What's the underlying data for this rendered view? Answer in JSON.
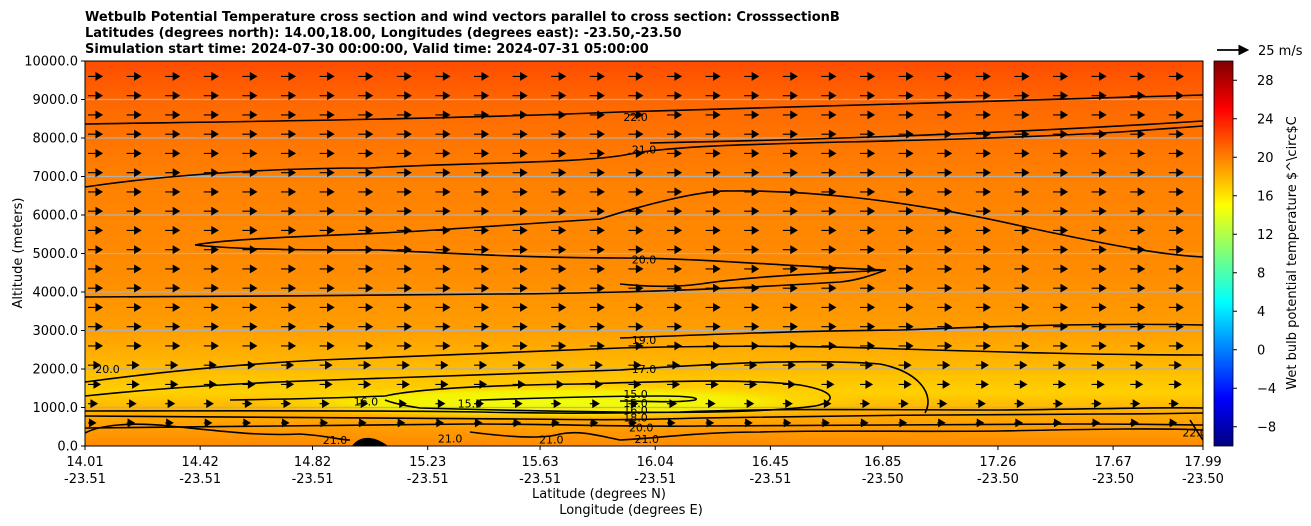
{
  "chart_data": {
    "type": "heatmap",
    "title_lines": [
      "Wetbulb Potential Temperature cross section and wind vectors parallel to cross section: CrosssectionB",
      "Latitudes (degrees north): 14.00,18.00, Longitudes (degrees east): -23.50,-23.50",
      "Simulation start time: 2024-07-30 00:00:00, Valid time: 2024-07-31 05:00:00"
    ],
    "ylabel": "Altitude (meters)",
    "xlabel_lat": "Latitude (degrees N)",
    "xlabel_lon": "Longitude (degrees E)",
    "ylim": [
      0,
      10000
    ],
    "y_ticks": [
      0,
      1000,
      2000,
      3000,
      4000,
      5000,
      6000,
      7000,
      8000,
      9000,
      10000
    ],
    "y_tick_labels": [
      "0.0",
      "1000.0",
      "2000.0",
      "3000.0",
      "4000.0",
      "5000.0",
      "6000.0",
      "7000.0",
      "8000.0",
      "9000.0",
      "10000.0"
    ],
    "xlim": [
      14.01,
      17.99
    ],
    "x_ticks": [
      14.01,
      14.42,
      14.82,
      15.23,
      15.63,
      16.04,
      16.45,
      16.85,
      17.26,
      17.67,
      17.99
    ],
    "x_tick_lat": [
      "14.01",
      "14.42",
      "14.82",
      "15.23",
      "15.63",
      "16.04",
      "16.45",
      "16.85",
      "17.26",
      "17.67",
      "17.99"
    ],
    "x_tick_lon": [
      "-23.51",
      "-23.51",
      "-23.51",
      "-23.51",
      "-23.51",
      "-23.51",
      "-23.51",
      "-23.50",
      "-23.50",
      "-23.50",
      "-23.50"
    ],
    "grid": "horizontal",
    "colorbar": {
      "label": "Wet bulb potential temperature $^\\circ$C",
      "range": [
        -10,
        30
      ],
      "ticks": [
        -8,
        -4,
        0,
        4,
        8,
        12,
        16,
        20,
        24,
        28
      ],
      "tick_labels": [
        "−8",
        "−4",
        "0",
        "4",
        "8",
        "12",
        "16",
        "20",
        "24",
        "28"
      ],
      "colormap": "jet"
    },
    "wind_key": {
      "label": "25 m/s",
      "speed": 25
    },
    "contour_labels": [
      {
        "text": "22.0",
        "lat": 15.97,
        "alt": 8550
      },
      {
        "text": "21.0",
        "lat": 16.0,
        "alt": 7700
      },
      {
        "text": "20.0",
        "lat": 16.0,
        "alt": 4850
      },
      {
        "text": "19.0",
        "lat": 16.0,
        "alt": 2750
      },
      {
        "text": "17.0",
        "lat": 16.0,
        "alt": 2000
      },
      {
        "text": "15.0",
        "lat": 15.97,
        "alt": 1350
      },
      {
        "text": "15.0",
        "lat": 15.97,
        "alt": 1120
      },
      {
        "text": "16.0",
        "lat": 15.97,
        "alt": 930
      },
      {
        "text": "18.0",
        "lat": 15.97,
        "alt": 740
      },
      {
        "text": "20.0",
        "lat": 15.99,
        "alt": 480
      },
      {
        "text": "21.0",
        "lat": 14.9,
        "alt": 150
      },
      {
        "text": "21.0",
        "lat": 15.31,
        "alt": 200
      },
      {
        "text": "21.0",
        "lat": 15.67,
        "alt": 170
      },
      {
        "text": "21.0",
        "lat": 16.01,
        "alt": 180
      },
      {
        "text": "20.0",
        "lat": 14.09,
        "alt": 2000
      },
      {
        "text": "16.0",
        "lat": 15.01,
        "alt": 1150
      },
      {
        "text": "15.0",
        "lat": 15.38,
        "alt": 1100
      },
      {
        "text": "22.0",
        "lat": 17.96,
        "alt": 350
      }
    ]
  }
}
